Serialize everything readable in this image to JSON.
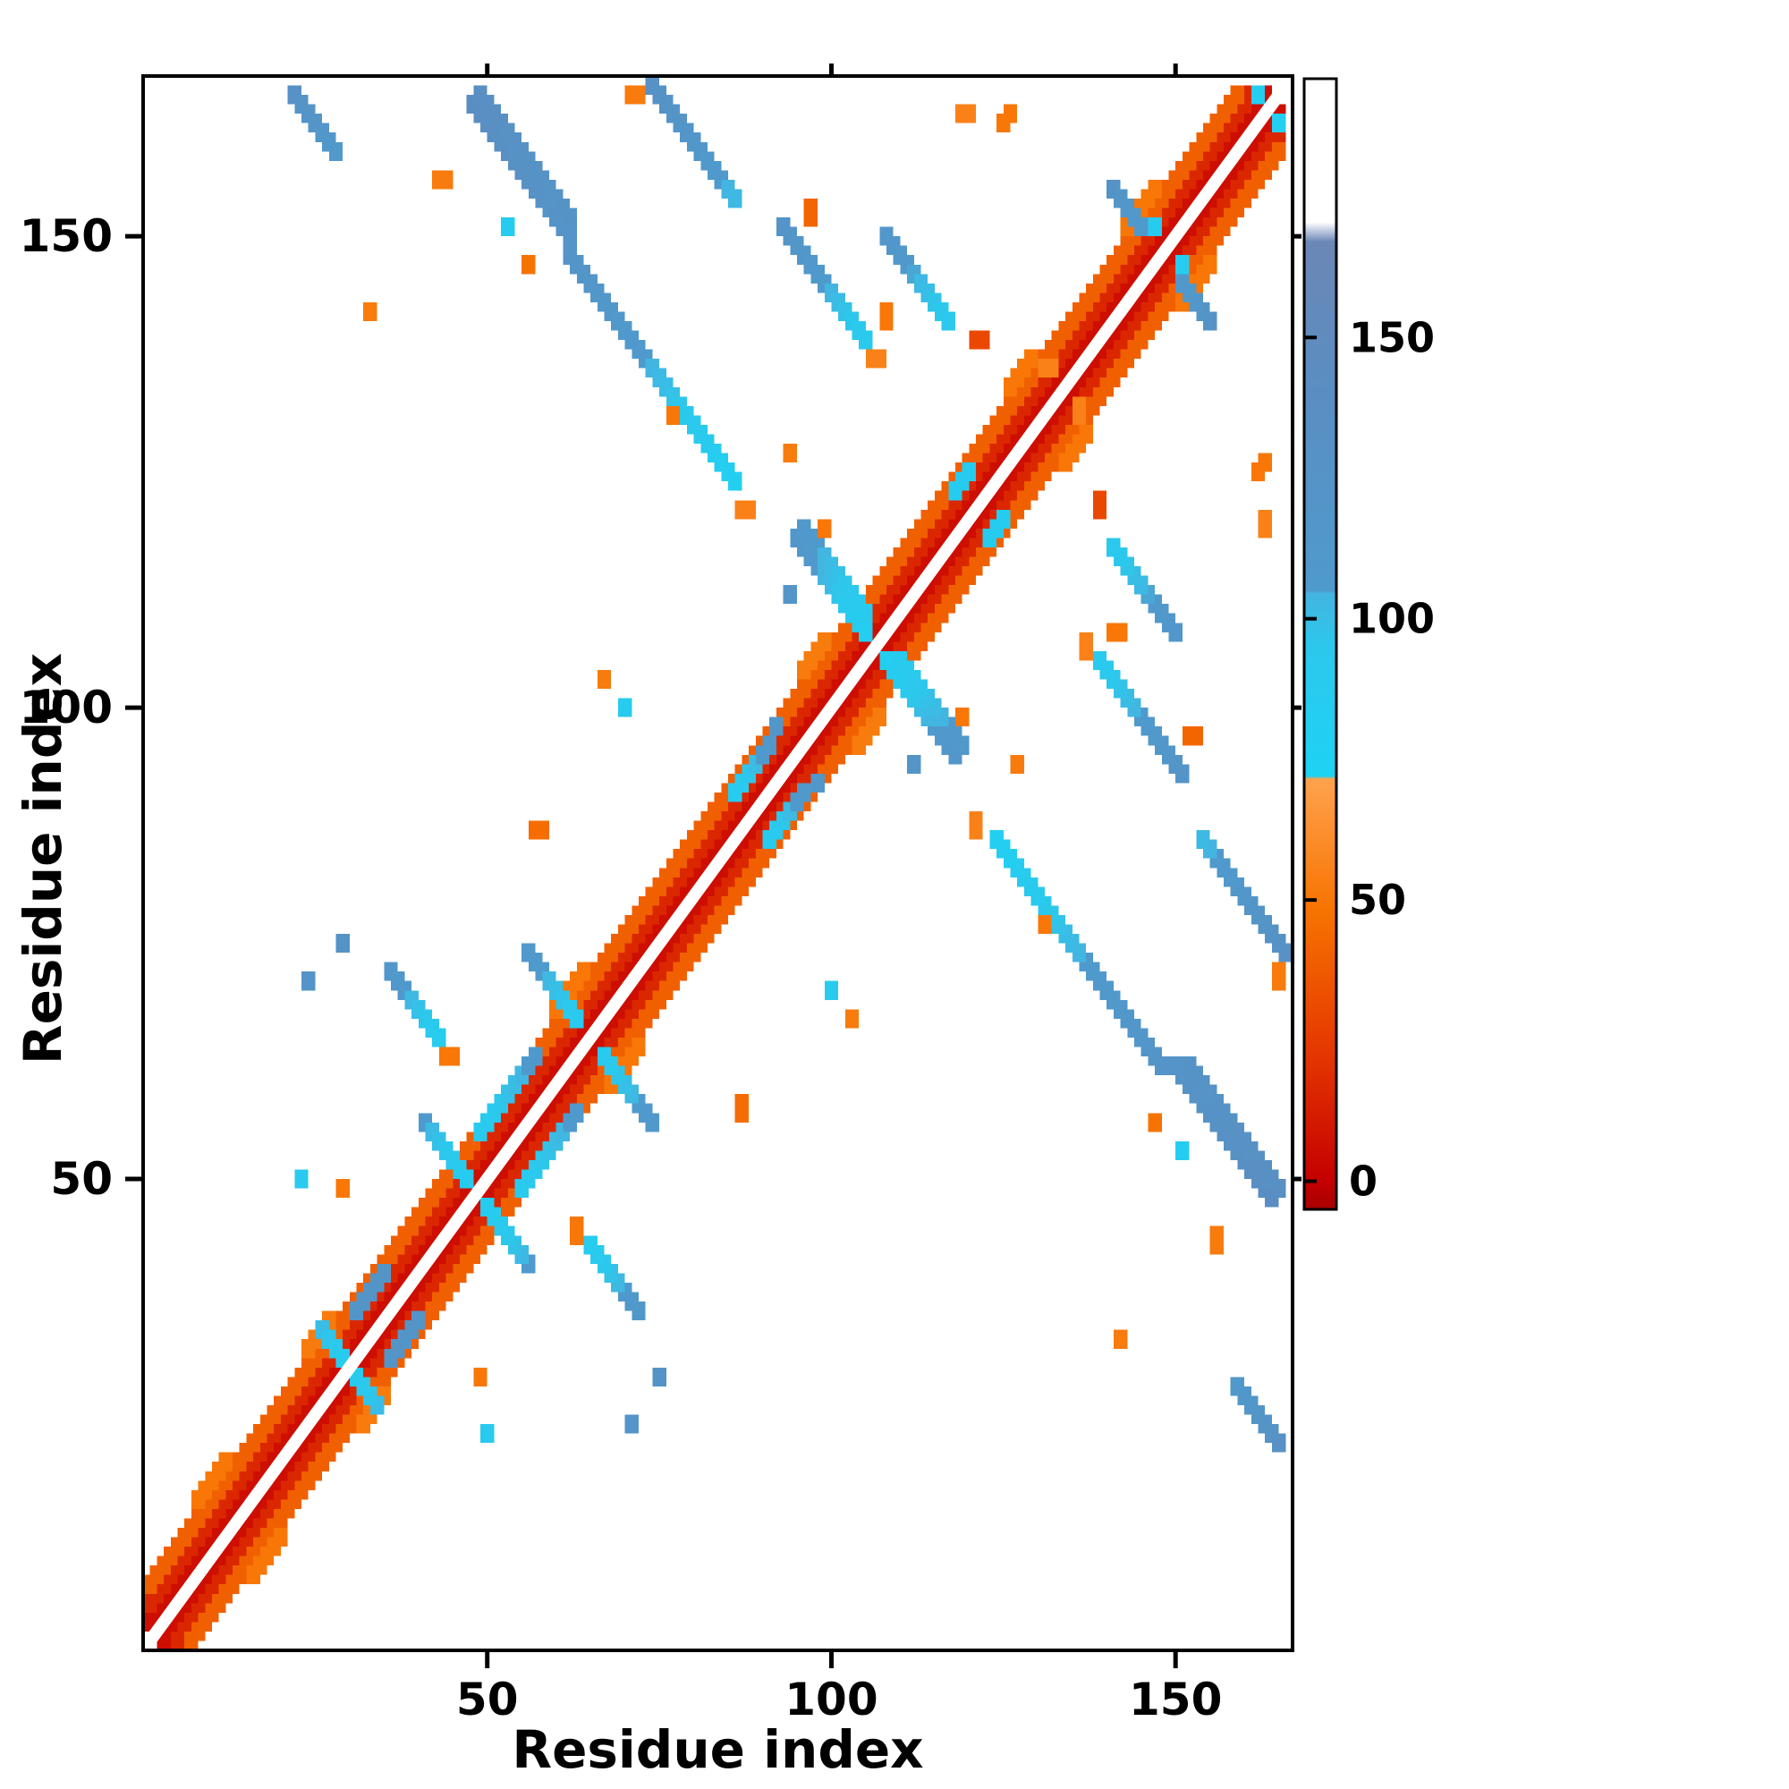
{
  "figure": {
    "background": "#ffffff"
  },
  "axes": {
    "xlabel": "Residue index",
    "ylabel": "Residue index",
    "x_ticks": [
      50,
      100,
      150
    ],
    "y_ticks": [
      50,
      100,
      150
    ],
    "x_range": [
      0,
      167
    ],
    "y_range": [
      0,
      167
    ]
  },
  "colorbar": {
    "ticks": [
      0,
      50,
      100,
      150
    ],
    "value_range": [
      -5,
      196
    ],
    "stops": [
      [
        -5,
        "#a80000"
      ],
      [
        0,
        "#c40000"
      ],
      [
        22,
        "#e43500"
      ],
      [
        48,
        "#f77300"
      ],
      [
        71.5,
        "#ffa24e"
      ],
      [
        72,
        "#1ed2f4"
      ],
      [
        95,
        "#2cc8ec"
      ],
      [
        104.5,
        "#44b4e0"
      ],
      [
        105,
        "#4f9acd"
      ],
      [
        140,
        "#5a8ec2"
      ],
      [
        167,
        "#6b87b6"
      ],
      [
        170.5,
        "#ffffff"
      ],
      [
        196,
        "#ffffff"
      ]
    ]
  },
  "chart_data": {
    "type": "heatmap",
    "title": "",
    "xlabel": "Residue index",
    "ylabel": "Residue index",
    "description": "Symmetric protein residue-residue contact map. Colored cells mark contacts between residue pairs; cell color encodes the scalar value shown on the colorbar (red/orange = low values near the diagonal, cyan/blue = high values for long-range contacts, white diagonal gap = excluded self contacts).",
    "symmetric": true,
    "cell_size": 2,
    "segment_format": [
      "x_start",
      "y_start",
      "dx",
      "dy",
      "n_cells",
      "v_start",
      "v_end"
    ],
    "segments": [
      [
        1,
        3,
        1,
        1,
        163,
        6,
        6
      ],
      [
        1,
        5,
        1,
        1,
        161,
        16,
        16
      ],
      [
        1,
        7,
        1,
        1,
        159,
        40,
        40
      ],
      [
        8,
        16,
        1,
        1,
        5,
        50,
        50
      ],
      [
        24,
        32,
        1,
        1,
        4,
        52,
        52
      ],
      [
        60,
        68,
        1,
        1,
        5,
        50,
        50
      ],
      [
        96,
        104,
        1,
        1,
        4,
        52,
        52
      ],
      [
        126,
        134,
        1,
        1,
        4,
        50,
        50
      ],
      [
        143,
        151,
        1,
        1,
        5,
        50,
        50
      ],
      [
        22,
        165,
        1,
        -1,
        7,
        130,
        110
      ],
      [
        48,
        164,
        1,
        -1,
        15,
        140,
        122
      ],
      [
        49,
        165,
        1,
        -1,
        14,
        136,
        124
      ],
      [
        62,
        148,
        1,
        -1,
        13,
        122,
        104
      ],
      [
        75,
        135,
        1,
        -1,
        12,
        102,
        80
      ],
      [
        87,
        121,
        1,
        0,
        2,
        55,
        55
      ],
      [
        74,
        166,
        1,
        -1,
        13,
        130,
        102
      ],
      [
        71,
        165,
        1,
        0,
        2,
        52,
        52
      ],
      [
        93,
        151,
        1,
        -1,
        13,
        122,
        90
      ],
      [
        106,
        137,
        1,
        0,
        2,
        55,
        55
      ],
      [
        108,
        142,
        0,
        -1,
        2,
        50,
        50
      ],
      [
        108,
        150,
        1,
        -1,
        10,
        115,
        92
      ],
      [
        95,
        118,
        1,
        -1,
        11,
        118,
        82
      ],
      [
        96,
        119,
        1,
        -1,
        10,
        112,
        88
      ],
      [
        118,
        123,
        1,
        1,
        3,
        85,
        85
      ],
      [
        131,
        136,
        1,
        0,
        2,
        55,
        55
      ],
      [
        141,
        155,
        1,
        -1,
        5,
        125,
        108
      ],
      [
        147,
        151,
        1,
        0,
        1,
        85,
        85
      ],
      [
        41,
        56,
        1,
        -1,
        7,
        105,
        85
      ],
      [
        49,
        55,
        1,
        1,
        9,
        88,
        108
      ],
      [
        56,
        74,
        1,
        -1,
        8,
        112,
        90
      ],
      [
        36,
        72,
        1,
        -1,
        8,
        115,
        86
      ],
      [
        44,
        63,
        1,
        0,
        2,
        50,
        50
      ],
      [
        26,
        34,
        1,
        -1,
        5,
        100,
        85
      ],
      [
        31,
        36,
        1,
        1,
        5,
        120,
        120
      ],
      [
        29,
        75,
        1,
        0,
        1,
        125,
        125
      ],
      [
        24,
        71,
        1,
        0,
        1,
        122,
        122
      ],
      [
        23,
        50,
        1,
        0,
        1,
        90,
        90
      ],
      [
        29,
        49,
        1,
        0,
        1,
        50,
        50
      ],
      [
        86,
        91,
        1,
        1,
        6,
        85,
        112
      ],
      [
        92,
        98,
        1,
        0,
        1,
        118,
        118
      ],
      [
        67,
        103,
        1,
        0,
        1,
        52,
        52
      ],
      [
        70,
        100,
        1,
        0,
        1,
        88,
        88
      ],
      [
        57,
        87,
        1,
        0,
        2,
        45,
        45
      ],
      [
        97,
        152,
        0,
        1,
        2,
        42,
        42
      ],
      [
        119,
        163,
        1,
        0,
        2,
        55,
        55
      ],
      [
        121,
        139,
        1,
        0,
        2,
        30,
        30
      ],
      [
        125,
        162,
        1,
        1,
        2,
        50,
        50
      ],
      [
        33,
        142,
        1,
        0,
        1,
        52,
        52
      ],
      [
        43,
        156,
        1,
        0,
        2,
        52,
        52
      ],
      [
        56,
        147,
        1,
        0,
        1,
        48,
        48
      ],
      [
        53,
        151,
        1,
        0,
        1,
        85,
        85
      ],
      [
        77,
        131,
        1,
        0,
        1,
        50,
        50
      ],
      [
        94,
        127,
        1,
        0,
        1,
        52,
        52
      ],
      [
        99,
        119,
        1,
        0,
        1,
        50,
        50
      ],
      [
        94,
        112,
        1,
        0,
        1,
        120,
        120
      ],
      [
        162,
        165,
        1,
        0,
        1,
        80,
        80
      ]
    ]
  }
}
